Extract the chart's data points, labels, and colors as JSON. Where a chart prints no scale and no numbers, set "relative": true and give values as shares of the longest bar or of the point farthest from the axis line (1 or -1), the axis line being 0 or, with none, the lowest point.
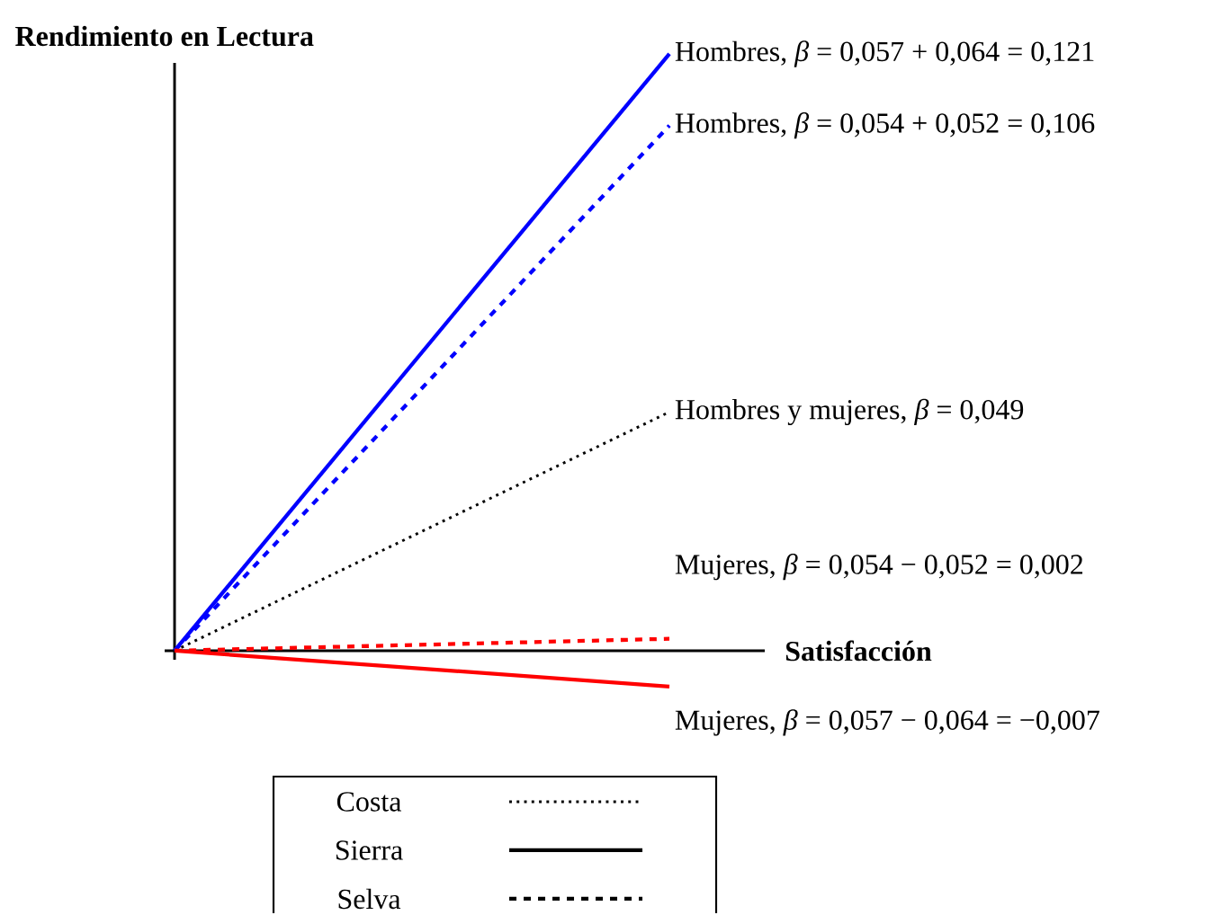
{
  "chart_data": {
    "type": "line",
    "relative": true,
    "xlabel": "Satisfacción",
    "ylabel": "Rendimiento en Lectura",
    "categories": [
      null,
      null
    ],
    "series": [
      {
        "name": "Hombres, *β* = 0,057 + 0,064 = 0,121",
        "color": "#0000ff",
        "line_style": "solid",
        "values": [
          0,
          1
        ]
      },
      {
        "name": "Hombres, *β* = 0,054 + 0,052 = 0,106",
        "color": "#0000ff",
        "line_style": "dashed",
        "values": [
          0,
          0.88
        ]
      },
      {
        "name": "Hombres y mujeres, *β* = 0,049",
        "color": "#000000",
        "line_style": "dotted",
        "values": [
          0,
          0.4
        ]
      },
      {
        "name": "Mujeres, *β* = 0,054 − 0,052 = 0,002",
        "color": "#ff0000",
        "line_style": "dashed",
        "values": [
          0,
          0.02
        ]
      },
      {
        "name": "Mujeres, *β* = 0,057 − 0,064 = −0,007",
        "color": "#ff0000",
        "line_style": "solid",
        "values": [
          0,
          -0.06
        ]
      }
    ],
    "annotations": [
      "Costa",
      "Sierra",
      "Selva"
    ],
    "marker": "none"
  }
}
